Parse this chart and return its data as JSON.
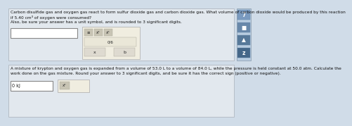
{
  "bg_color": "#d0dce8",
  "top_section_bg": "#e2e8ee",
  "bottom_section_bg": "#e2e8ee",
  "section_border": "#b0b8c0",
  "top_text_line1": "Carbon disulfide gas and oxygen gas react to form sulfur dioxide gas and carbon dioxide gas. What volume of carbon dioxide would be produced by this reaction",
  "top_text_line2": "if 5.40 cm³ of oxygen were consumed?",
  "top_text_line3": "Also, be sure your answer has a unit symbol, and is rounded to 3 significant digits.",
  "bottom_text_line1": "A mixture of krypton and oxygen gas is expanded from a volume of 53.0 L to a volume of 84.0 L, while the pressure is held constant at 50.0 atm. Calculate the",
  "bottom_text_line2": "work done on the gas mixture. Round your answer to 3 significant digits, and be sure it has the correct sign (positive or negative).",
  "input_box_color": "#ffffff",
  "input_box_border": "#888888",
  "toolbar_bg": "#f0ede0",
  "toolbar_border": "#aaaaaa",
  "toolbar_btn_color": "#dedad0",
  "right_panel_bg": "#b8cce0",
  "right_panel_btn1": "#7a9abf",
  "right_panel_btn2": "#6888aa",
  "right_panel_btn3": "#567899",
  "right_panel_btn4": "#446688",
  "divider_color": "#b0b8c0",
  "text_color": "#111111",
  "font_size_main": 4.2,
  "font_size_toolbar": 4.0,
  "input_placeholder": "",
  "bottom_input_text": "0 kJ"
}
